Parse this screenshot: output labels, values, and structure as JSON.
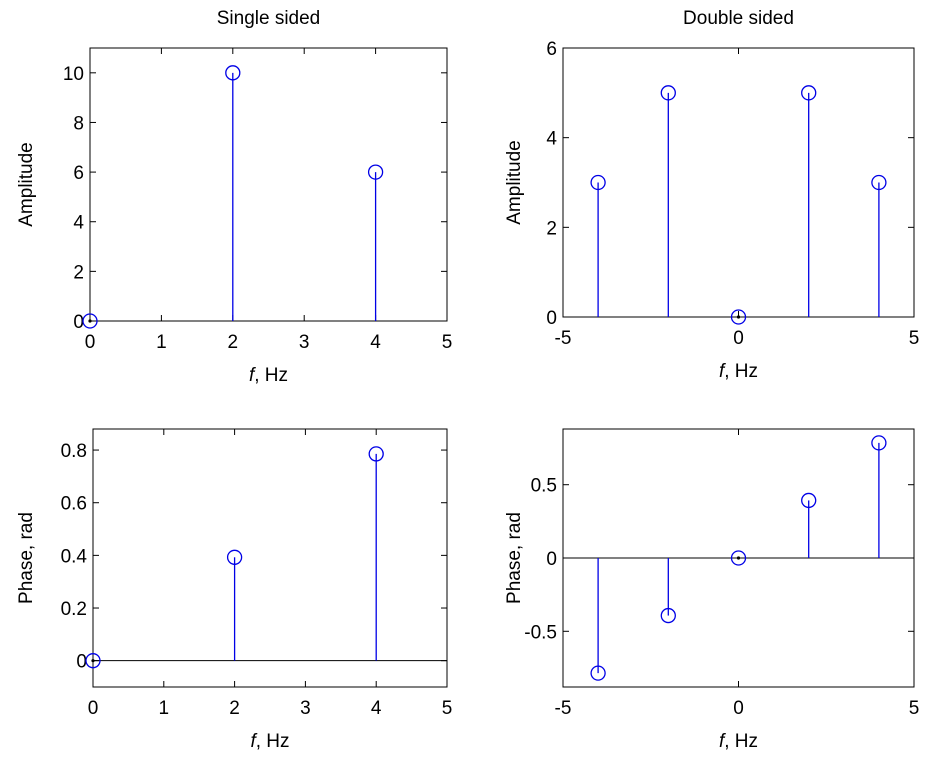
{
  "chart_data": [
    {
      "type": "stem",
      "title": "Single sided",
      "xlabel_italic": "f",
      "xlabel_rest": ", Hz",
      "ylabel": "Amplitude",
      "xlim": [
        0,
        5
      ],
      "ylim": [
        0,
        11
      ],
      "xticks": [
        0,
        1,
        2,
        3,
        4,
        5
      ],
      "yticks": [
        0,
        2,
        4,
        6,
        8,
        10
      ],
      "x": [
        0,
        2,
        4
      ],
      "y": [
        0,
        10,
        6
      ],
      "color": "#0000e6"
    },
    {
      "type": "stem",
      "title": "Double sided",
      "xlabel_italic": "f",
      "xlabel_rest": ", Hz",
      "ylabel": "Amplitude",
      "xlim": [
        -5,
        5
      ],
      "ylim": [
        0,
        6
      ],
      "xticks": [
        -5,
        0,
        5
      ],
      "yticks": [
        0,
        2,
        4,
        6
      ],
      "x": [
        -4,
        -2,
        0,
        2,
        4
      ],
      "y": [
        3,
        5,
        0,
        5,
        3
      ],
      "color": "#0000e6"
    },
    {
      "type": "stem",
      "title": "",
      "xlabel_italic": "f",
      "xlabel_rest": ", Hz",
      "ylabel": "Phase, rad",
      "xlim": [
        0,
        5
      ],
      "ylim": [
        -0.1,
        0.88
      ],
      "xticks": [
        0,
        1,
        2,
        3,
        4,
        5
      ],
      "yticks": [
        0,
        0.2,
        0.4,
        0.6,
        0.8
      ],
      "x": [
        0,
        2,
        4
      ],
      "y": [
        0,
        0.3927,
        0.7854
      ],
      "color": "#0000e6"
    },
    {
      "type": "stem",
      "title": "",
      "xlabel_italic": "f",
      "xlabel_rest": ", Hz",
      "ylabel": "Phase, rad",
      "xlim": [
        -5,
        5
      ],
      "ylim": [
        -0.88,
        0.88
      ],
      "xticks": [
        -5,
        0,
        5
      ],
      "yticks": [
        -0.5,
        0,
        0.5
      ],
      "x": [
        -4,
        -2,
        0,
        2,
        4
      ],
      "y": [
        -0.7854,
        -0.3927,
        0,
        0.3927,
        0.7854
      ],
      "color": "#0000e6"
    }
  ]
}
